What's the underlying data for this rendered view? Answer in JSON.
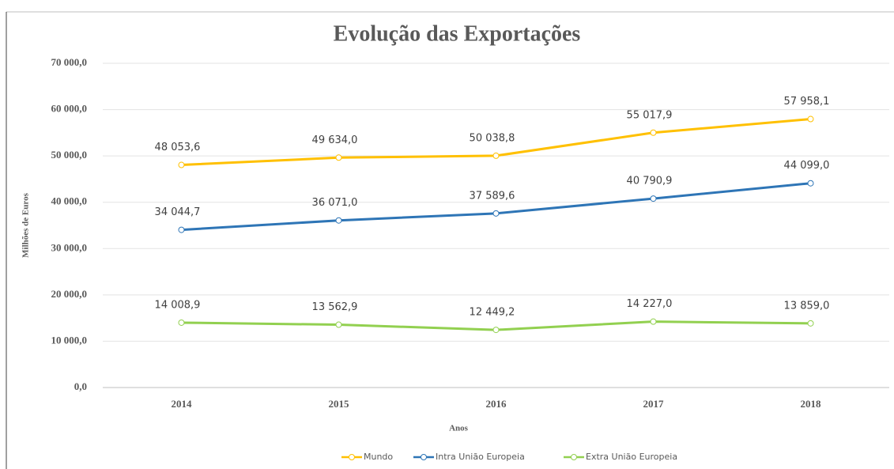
{
  "chart_data": {
    "type": "line",
    "title": "Evolução das Exportações",
    "x_label": "Anos",
    "y_label": "Milhões de Euros",
    "categories": [
      "2014",
      "2015",
      "2016",
      "2017",
      "2018"
    ],
    "series": [
      {
        "name": "Mundo",
        "color": "#ffc000",
        "values": [
          48053.6,
          49634.0,
          50038.8,
          55017.9,
          57958.1
        ],
        "value_labels": [
          "48 053,6",
          "49 634,0",
          "50 038,8",
          "55 017,9",
          "57 958,1"
        ]
      },
      {
        "name": "Intra União Europeia",
        "color": "#2e75b6",
        "values": [
          34044.7,
          36071.0,
          37589.6,
          40790.9,
          44099.0
        ],
        "value_labels": [
          "34 044,7",
          "36 071,0",
          "37 589,6",
          "40 790,9",
          "44 099,0"
        ]
      },
      {
        "name": "Extra União Europeia",
        "color": "#92d050",
        "values": [
          14008.9,
          13562.9,
          12449.2,
          14227.0,
          13859.0
        ],
        "value_labels": [
          "14 008,9",
          "13 562,9",
          "12 449,2",
          "14 227,0",
          "13 859,0"
        ]
      }
    ],
    "ylim": [
      0,
      70000
    ],
    "yticks": [
      {
        "value": 0,
        "label": "0,0"
      },
      {
        "value": 10000,
        "label": "10 000,0"
      },
      {
        "value": 20000,
        "label": "20 000,0"
      },
      {
        "value": 30000,
        "label": "30 000,0"
      },
      {
        "value": 40000,
        "label": "40 000,0"
      },
      {
        "value": 50000,
        "label": "50 000,0"
      },
      {
        "value": 60000,
        "label": "60 000,0"
      },
      {
        "value": 70000,
        "label": "70 000,0"
      }
    ],
    "grid": true,
    "legend": "bottom"
  }
}
